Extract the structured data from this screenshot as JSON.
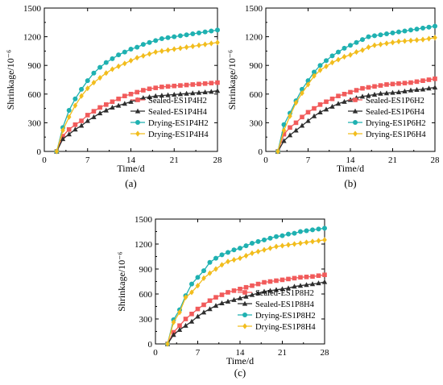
{
  "colors": {
    "sealed_h2": "#f15b5b",
    "sealed_h4": "#2e2e2e",
    "drying_h2": "#1fb1b1",
    "drying_h4": "#f2bd1d"
  },
  "chart_data": [
    {
      "type": "line",
      "panel_label": "(a)",
      "xlabel": "Time/d",
      "ylabel": "Shrinkage/10⁻⁶",
      "xlim": [
        0,
        28
      ],
      "ylim": [
        0,
        1500
      ],
      "xticks": [
        "0",
        "7",
        "14",
        "21",
        "28"
      ],
      "yticks": [
        "0",
        "300",
        "600",
        "900",
        "1200",
        "1500"
      ],
      "grid": false,
      "legend_position": "bottom-right",
      "x": [
        2,
        3,
        4,
        5,
        6,
        7,
        8,
        9,
        10,
        11,
        12,
        13,
        14,
        15,
        16,
        17,
        18,
        19,
        20,
        21,
        22,
        23,
        24,
        25,
        26,
        27,
        28
      ],
      "series": [
        {
          "name": "Sealed-ES1P4H2",
          "color": "#f15b5b",
          "marker": "square",
          "values": [
            0,
            160,
            230,
            280,
            320,
            380,
            420,
            460,
            490,
            520,
            550,
            580,
            600,
            620,
            640,
            655,
            665,
            675,
            680,
            685,
            690,
            695,
            700,
            705,
            710,
            715,
            720
          ]
        },
        {
          "name": "Sealed-ES1P4H4",
          "color": "#2e2e2e",
          "marker": "triangle",
          "values": [
            0,
            130,
            180,
            230,
            270,
            320,
            360,
            400,
            430,
            460,
            480,
            500,
            520,
            540,
            560,
            570,
            580,
            585,
            590,
            595,
            600,
            605,
            610,
            615,
            620,
            625,
            635
          ]
        },
        {
          "name": "Drying-ES1P4H2",
          "color": "#1fb1b1",
          "marker": "circle",
          "values": [
            0,
            250,
            430,
            550,
            650,
            740,
            820,
            880,
            930,
            970,
            1010,
            1040,
            1070,
            1090,
            1120,
            1140,
            1160,
            1180,
            1190,
            1200,
            1210,
            1220,
            1230,
            1240,
            1250,
            1260,
            1270
          ]
        },
        {
          "name": "Drying-ES1P4H4",
          "color": "#f2bd1d",
          "marker": "diamond",
          "values": [
            0,
            220,
            360,
            480,
            580,
            660,
            720,
            770,
            820,
            860,
            890,
            920,
            950,
            980,
            1000,
            1020,
            1040,
            1050,
            1060,
            1070,
            1080,
            1090,
            1100,
            1110,
            1120,
            1130,
            1140
          ]
        }
      ]
    },
    {
      "type": "line",
      "panel_label": "(b)",
      "xlabel": "Time/d",
      "ylabel": "Shrinkage/10⁻⁶",
      "xlim": [
        0,
        28
      ],
      "ylim": [
        0,
        1500
      ],
      "xticks": [
        "0",
        "7",
        "14",
        "21",
        "28"
      ],
      "yticks": [
        "0",
        "300",
        "600",
        "900",
        "1200",
        "1500"
      ],
      "grid": false,
      "legend_position": "bottom-right",
      "x": [
        2,
        3,
        4,
        5,
        6,
        7,
        8,
        9,
        10,
        11,
        12,
        13,
        14,
        15,
        16,
        17,
        18,
        19,
        20,
        21,
        22,
        23,
        24,
        25,
        26,
        27,
        28
      ],
      "series": [
        {
          "name": "Sealed-ES1P6H2",
          "color": "#f15b5b",
          "marker": "square",
          "values": [
            0,
            180,
            250,
            300,
            360,
            410,
            450,
            490,
            520,
            550,
            580,
            600,
            620,
            640,
            660,
            670,
            680,
            690,
            700,
            705,
            710,
            715,
            720,
            730,
            740,
            750,
            760
          ]
        },
        {
          "name": "Sealed-ES1P6H4",
          "color": "#2e2e2e",
          "marker": "triangle",
          "values": [
            0,
            110,
            170,
            220,
            270,
            320,
            370,
            410,
            440,
            470,
            500,
            520,
            540,
            560,
            575,
            585,
            595,
            605,
            610,
            615,
            620,
            630,
            640,
            645,
            650,
            660,
            670
          ]
        },
        {
          "name": "Drying-ES1P6H2",
          "color": "#1fb1b1",
          "marker": "circle",
          "values": [
            0,
            280,
            400,
            530,
            650,
            740,
            830,
            900,
            950,
            1000,
            1040,
            1080,
            1110,
            1140,
            1170,
            1200,
            1210,
            1220,
            1230,
            1240,
            1250,
            1260,
            1270,
            1280,
            1290,
            1300,
            1310
          ]
        },
        {
          "name": "Drying-ES1P6H4",
          "color": "#f2bd1d",
          "marker": "diamond",
          "values": [
            0,
            220,
            370,
            510,
            610,
            700,
            790,
            850,
            890,
            930,
            960,
            990,
            1010,
            1040,
            1060,
            1090,
            1110,
            1120,
            1130,
            1140,
            1150,
            1155,
            1160,
            1165,
            1170,
            1180,
            1190
          ]
        }
      ]
    },
    {
      "type": "line",
      "panel_label": "(c)",
      "xlabel": "Time/d",
      "ylabel": "Shrinkage/10⁻⁶",
      "xlim": [
        0,
        28
      ],
      "ylim": [
        0,
        1500
      ],
      "xticks": [
        "0",
        "7",
        "14",
        "21",
        "28"
      ],
      "yticks": [
        "0",
        "300",
        "600",
        "900",
        "1200",
        "1500"
      ],
      "grid": false,
      "legend_position": "bottom-right",
      "x": [
        2,
        3,
        4,
        5,
        6,
        7,
        8,
        9,
        10,
        11,
        12,
        13,
        14,
        15,
        16,
        17,
        18,
        19,
        20,
        21,
        22,
        23,
        24,
        25,
        26,
        27,
        28
      ],
      "series": [
        {
          "name": "Sealed-ES1P8H2",
          "color": "#f15b5b",
          "marker": "square",
          "values": [
            0,
            140,
            220,
            300,
            360,
            420,
            470,
            520,
            560,
            590,
            620,
            640,
            660,
            680,
            700,
            720,
            740,
            750,
            760,
            770,
            780,
            790,
            800,
            805,
            810,
            820,
            830
          ]
        },
        {
          "name": "Sealed-ES1P8H4",
          "color": "#2e2e2e",
          "marker": "triangle",
          "values": [
            0,
            110,
            170,
            220,
            270,
            330,
            380,
            420,
            460,
            490,
            510,
            530,
            550,
            570,
            590,
            610,
            630,
            640,
            650,
            660,
            670,
            690,
            700,
            710,
            720,
            730,
            745
          ]
        },
        {
          "name": "Drying-ES1P8H2",
          "color": "#1fb1b1",
          "marker": "circle",
          "values": [
            0,
            290,
            410,
            580,
            720,
            800,
            880,
            980,
            1030,
            1070,
            1100,
            1130,
            1150,
            1180,
            1210,
            1230,
            1250,
            1270,
            1290,
            1300,
            1320,
            1330,
            1350,
            1360,
            1370,
            1380,
            1390
          ]
        },
        {
          "name": "Drying-ES1P8H4",
          "color": "#f2bd1d",
          "marker": "diamond",
          "values": [
            0,
            260,
            380,
            560,
            620,
            700,
            790,
            850,
            900,
            950,
            990,
            1010,
            1030,
            1060,
            1090,
            1110,
            1130,
            1150,
            1170,
            1180,
            1190,
            1200,
            1210,
            1220,
            1230,
            1240,
            1250
          ]
        }
      ]
    }
  ]
}
